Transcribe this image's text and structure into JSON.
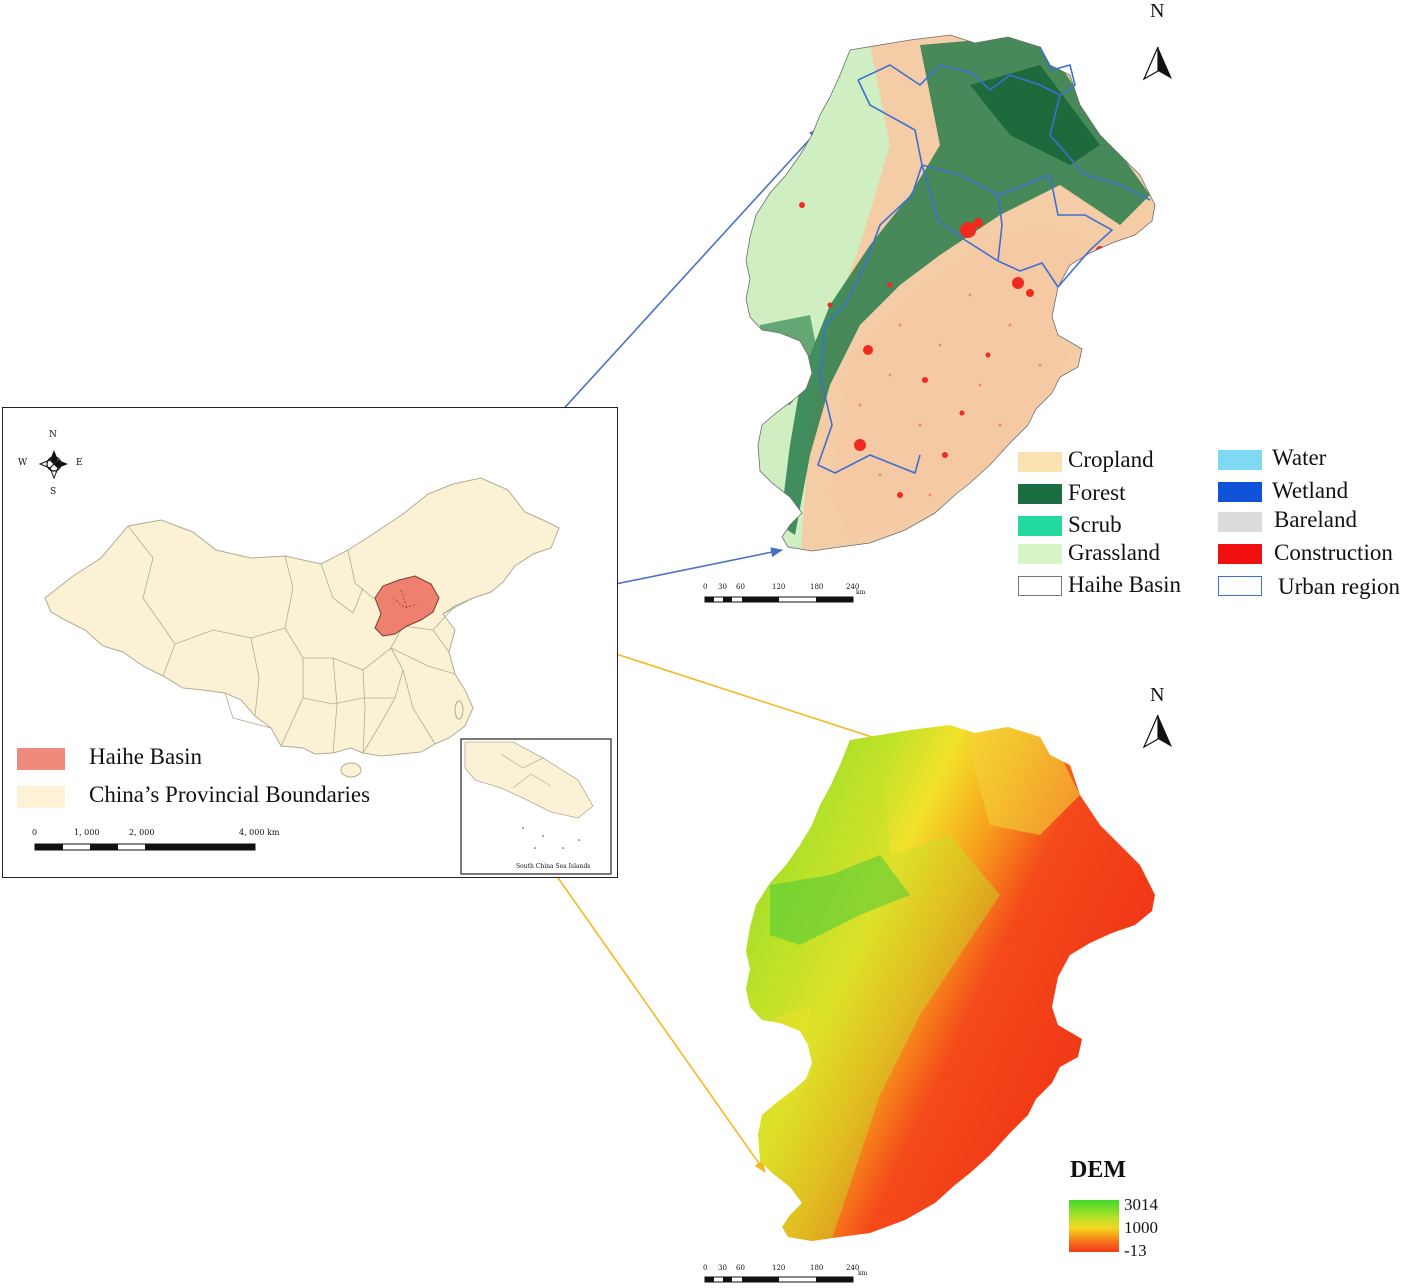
{
  "inset_map": {
    "compass": {
      "n": "N",
      "s": "S",
      "w": "W",
      "e": "E"
    },
    "legend": [
      {
        "label": "Haihe Basin",
        "color": "#f08a7c"
      },
      {
        "label": "China’s Provincial Boundaries",
        "color": "#fdf1d6"
      }
    ],
    "scale_ticks": [
      "0",
      "1, 000",
      "2, 000",
      "4, 000 km"
    ],
    "south_china_sea_label": "South China Sea Islands",
    "region_fill": "#fbf1d5",
    "basin_fill": "#ef8070"
  },
  "landuse_map": {
    "north_label": "N",
    "legend_left": [
      {
        "label": "Cropland",
        "color": "#f9e1b0"
      },
      {
        "label": "Forest",
        "color": "#1b6e42"
      },
      {
        "label": "Scrub",
        "color": "#22d9a0"
      },
      {
        "label": "Grassland",
        "color": "#d5f5c7"
      },
      {
        "label": "Haihe Basin",
        "color": "#ffffff"
      }
    ],
    "legend_right": [
      {
        "label": "Water",
        "color": "#7fd8f4"
      },
      {
        "label": "Wetland",
        "color": "#0f52d8"
      },
      {
        "label": "Bareland",
        "color": "#dcdcdc"
      },
      {
        "label": "Construction",
        "color": "#f20f0f"
      },
      {
        "label": "Urban region",
        "color": "#ffffff"
      }
    ],
    "scale_ticks": [
      "0",
      "30",
      "60",
      "120",
      "180",
      "240"
    ],
    "scale_unit": "km"
  },
  "dem_map": {
    "north_label": "N",
    "title": "DEM",
    "legend_values": [
      "3014",
      "1000",
      "-13"
    ],
    "scale_ticks": [
      "0",
      "30",
      "60",
      "120",
      "180",
      "240"
    ],
    "scale_unit": "km"
  },
  "colors": {
    "blue_arrow": "#4a72c4",
    "orange_arrow": "#f5b823",
    "urban_boundary": "#3e6fd3"
  }
}
